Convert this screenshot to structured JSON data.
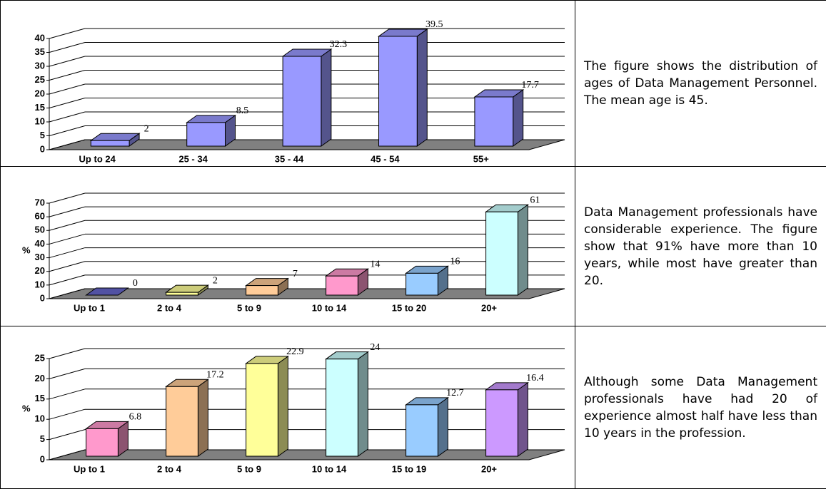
{
  "chart_data": [
    {
      "type": "bar3d",
      "categories": [
        "Up to 24",
        "25 - 34",
        "35 - 44",
        "45 - 54",
        "55+"
      ],
      "values": [
        2,
        8.5,
        32.3,
        39.5,
        17.7
      ],
      "color": "#9999ff",
      "ylim": [
        0,
        40
      ],
      "yticks": [
        0,
        5,
        10,
        15,
        20,
        25,
        30,
        35,
        40
      ],
      "grid": true
    },
    {
      "type": "bar3d",
      "ylabel": "%",
      "categories": [
        "Up to 1",
        "2 to 4",
        "5 to 9",
        "10 to 14",
        "15 to 20",
        "20+"
      ],
      "values": [
        0,
        2,
        7,
        14,
        16,
        61
      ],
      "colors": [
        "#6666cc",
        "#ffff99",
        "#ffcc99",
        "#ff99cc",
        "#99ccff",
        "#ccffff"
      ],
      "ylim": [
        0,
        70
      ],
      "yticks": [
        0,
        10,
        20,
        30,
        40,
        50,
        60,
        70
      ],
      "grid": true
    },
    {
      "type": "bar3d",
      "ylabel": "%",
      "categories": [
        "Up to 1",
        "2 to 4",
        "5 to 9",
        "10 to 14",
        "15 to 19",
        "20+"
      ],
      "values": [
        6.8,
        17.2,
        22.9,
        24,
        12.7,
        16.4
      ],
      "colors": [
        "#ff99cc",
        "#ffcc99",
        "#ffff99",
        "#ccffff",
        "#99ccff",
        "#cc99ff"
      ],
      "ylim": [
        0,
        25
      ],
      "yticks": [
        0,
        5,
        10,
        15,
        20,
        25
      ],
      "grid": true
    }
  ],
  "captions": [
    "The figure shows the distribution of ages of Data Management Personnel. The mean age is 45.",
    "Data Management professionals have considerable experience. The figure show that 91% have more than 10 years, while most have greater than 20.",
    "Although some Data Management professionals have had 20 of experience almost half have less than 10 years in the profession."
  ]
}
